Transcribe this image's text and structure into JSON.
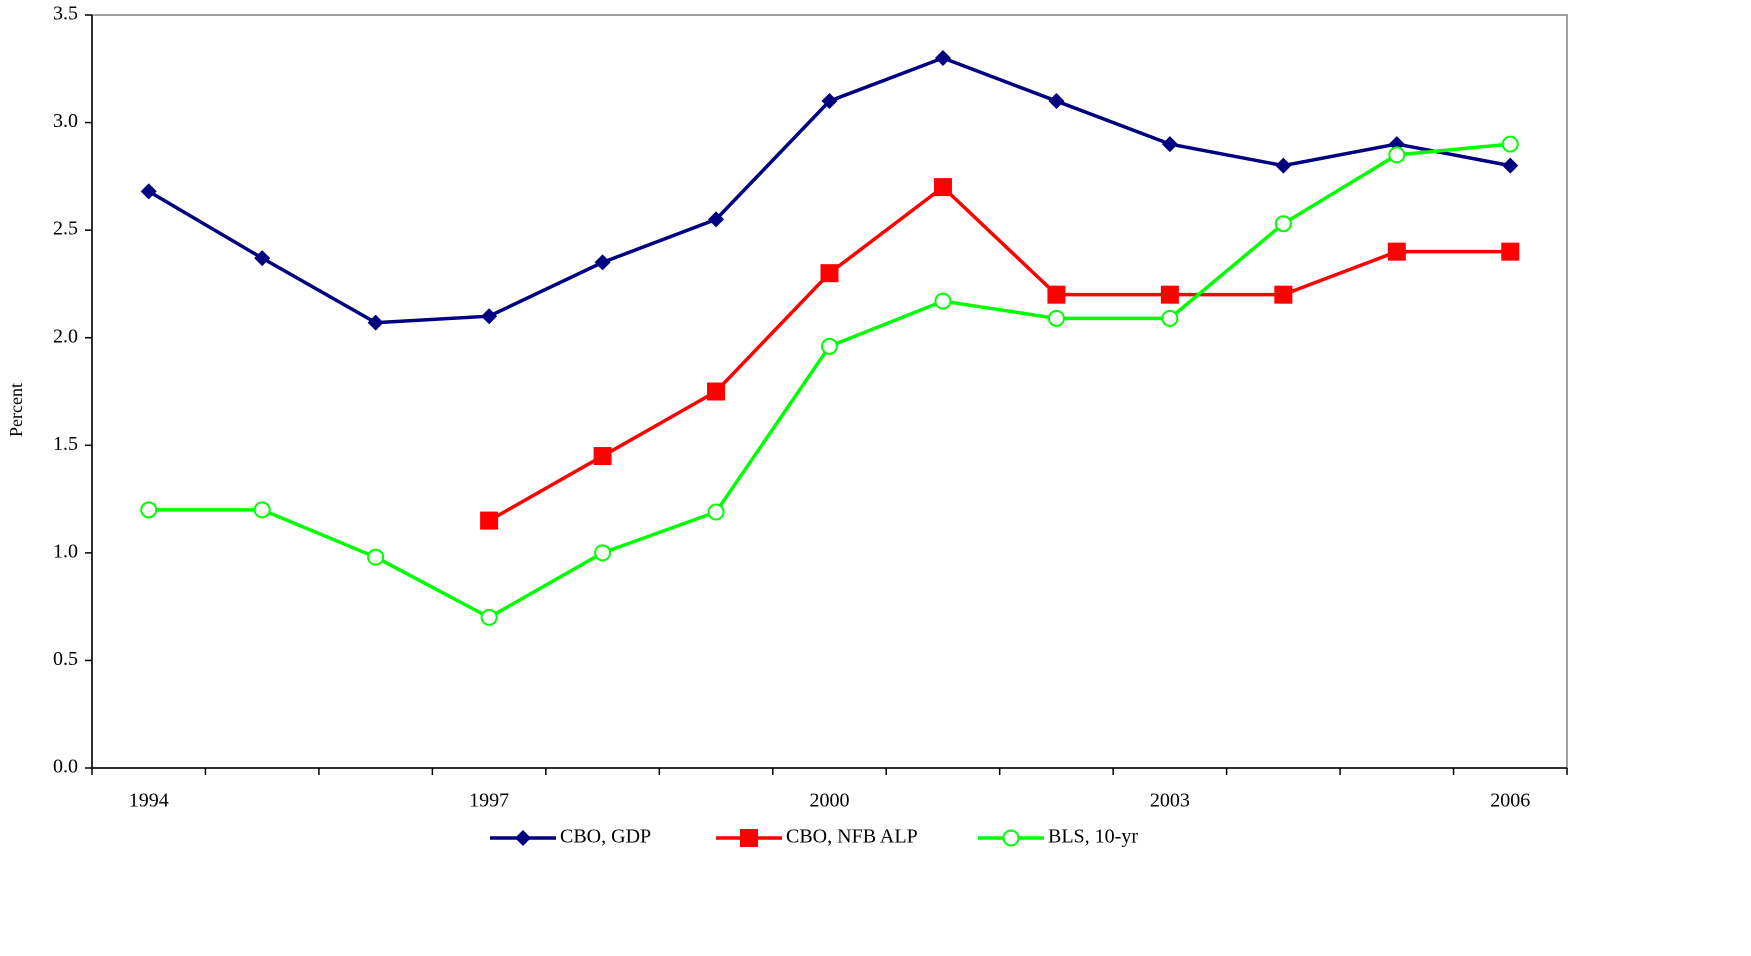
{
  "chart_data": {
    "type": "line",
    "y_label": "Percent",
    "categories": [
      "1994",
      null,
      null,
      "1997",
      null,
      null,
      "2000",
      null,
      null,
      "2003",
      null,
      null,
      "2006"
    ],
    "series": [
      {
        "name": "CBO, GDP",
        "color": "#000080",
        "marker": "diamond",
        "values": [
          2.68,
          2.37,
          2.07,
          2.1,
          2.35,
          2.55,
          3.1,
          3.3,
          3.1,
          2.9,
          2.8,
          2.9,
          2.8
        ]
      },
      {
        "name": "CBO, NFB ALP",
        "color": "#ff0000",
        "marker": "square",
        "values": [
          null,
          null,
          null,
          1.15,
          1.45,
          1.75,
          2.3,
          2.7,
          2.2,
          2.2,
          2.2,
          2.4,
          2.4
        ]
      },
      {
        "name": "BLS, 10-yr",
        "color": "#00ff00",
        "marker": "circle",
        "values": [
          1.2,
          1.2,
          0.98,
          0.7,
          1.0,
          1.19,
          1.96,
          2.17,
          2.09,
          2.09,
          2.53,
          2.85,
          2.9
        ]
      }
    ],
    "ylim": [
      0,
      3.5
    ],
    "yticks": [
      {
        "value": 0,
        "label": "0.0"
      },
      0.5,
      {
        "value": 1,
        "label": "1.0"
      },
      1.5,
      {
        "value": 2,
        "label": "2.0"
      },
      2.5,
      {
        "value": 3,
        "label": "3.0"
      },
      3.5
    ],
    "grid": false,
    "legend": "bottom"
  }
}
